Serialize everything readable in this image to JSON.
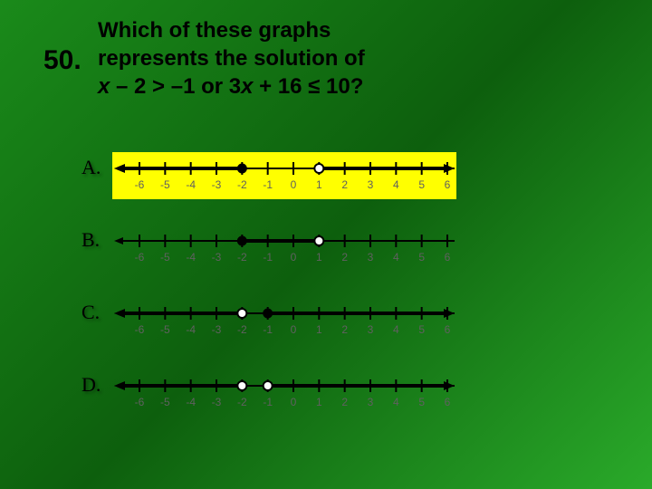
{
  "question": {
    "number": "50.",
    "line1": "Which of these graphs",
    "line2": "represents the solution of",
    "expr_prefix": "x",
    "expr_mid1": " – 2 > –1 or 3",
    "expr_x2": "x",
    "expr_tail": " + 16 ≤ 10?"
  },
  "numberline": {
    "min": -6,
    "max": 6,
    "labels": [
      "-6",
      "-5",
      "-4",
      "-3",
      "-2",
      "-1",
      "0",
      "1",
      "2",
      "3",
      "4",
      "5",
      "6"
    ],
    "xStart": 30,
    "xEnd": 370,
    "yAxis": 18,
    "tickHalf": 7,
    "labelY": 40,
    "label_color": "#606060",
    "axis_color": "#000000",
    "ray_width": 4,
    "point_radius": 5
  },
  "options": [
    {
      "label": "A.",
      "highlight": true,
      "rays": [
        {
          "from": -2,
          "dir": "left",
          "endpoint": "closed"
        },
        {
          "from": 1,
          "dir": "right",
          "endpoint": "open"
        }
      ]
    },
    {
      "label": "B.",
      "highlight": false,
      "rays": [
        {
          "from": -2,
          "to": 1,
          "segment": true
        },
        {
          "from": -2,
          "endpoint": "closed",
          "point_only": true
        },
        {
          "from": 1,
          "endpoint": "open",
          "point_only": true
        }
      ]
    },
    {
      "label": "C.",
      "highlight": false,
      "rays": [
        {
          "from": -2,
          "dir": "left",
          "endpoint": "open"
        },
        {
          "from": -1,
          "dir": "right",
          "endpoint": "closed"
        }
      ]
    },
    {
      "label": "D.",
      "highlight": false,
      "rays": [
        {
          "from": -2,
          "dir": "left",
          "endpoint": "open"
        },
        {
          "from": -1,
          "dir": "right",
          "endpoint": "open"
        }
      ]
    }
  ],
  "colors": {
    "highlight_bg": "#ffff00",
    "text": "#000000"
  }
}
